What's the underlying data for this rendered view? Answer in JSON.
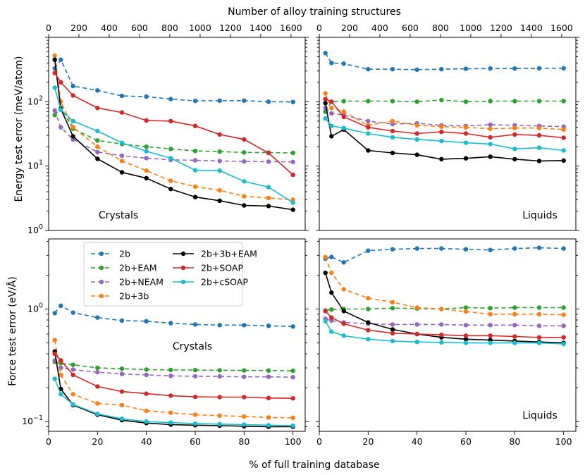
{
  "figure": {
    "top_xlabel": "Number of alloy training structures",
    "bottom_xlabel": "% of full training database",
    "top_ticks": [
      0,
      200,
      400,
      600,
      800,
      1000,
      1200,
      1400,
      1600
    ],
    "top_ticks_max_value": 1613,
    "legend": [
      "2b",
      "2b+EAM",
      "2b+NEAM",
      "2b+3b",
      "2b+3b+EAM",
      "2b+SOAP",
      "2b+cSOAP"
    ]
  },
  "chart_data": [
    {
      "type": "line",
      "panel": "energy-crystals",
      "label": "Crystals",
      "ylabel": "Energy test error (meV/atom)",
      "yscale": "log",
      "xlim": [
        0,
        105
      ],
      "ylim": [
        1,
        1000
      ],
      "yticks": [
        "10^0",
        "10^1",
        "10^2"
      ],
      "xticks": [
        0,
        20,
        40,
        60,
        80,
        100
      ],
      "x": [
        2.5,
        5,
        10,
        20,
        30,
        40,
        50,
        60,
        70,
        80,
        90,
        100
      ],
      "series": [
        {
          "name": "2b",
          "color": "#1f77b4",
          "dashed": true,
          "values": [
            330,
            450,
            175,
            150,
            123,
            120,
            110,
            103,
            104,
            104,
            100,
            99
          ]
        },
        {
          "name": "2b+EAM",
          "color": "#2ca02c",
          "dashed": true,
          "values": [
            62,
            80,
            38,
            25,
            22,
            20,
            18.5,
            17.2,
            16.8,
            16.3,
            16.2,
            16
          ]
        },
        {
          "name": "2b+NEAM",
          "color": "#9467bd",
          "dashed": true,
          "values": [
            73,
            40,
            26,
            16.5,
            14.5,
            13.3,
            12.5,
            12.3,
            12,
            11.8,
            11.7,
            11.6
          ]
        },
        {
          "name": "2b+3b",
          "color": "#ff7f0e",
          "dashed": true,
          "values": [
            520,
            100,
            40,
            20,
            12,
            8.5,
            5.9,
            4.8,
            4.2,
            3.4,
            3.2,
            3
          ]
        },
        {
          "name": "2b+3b+EAM",
          "color": "#000000",
          "dashed": false,
          "values": [
            450,
            77,
            29,
            13,
            8,
            6.5,
            4.4,
            3.3,
            2.9,
            2.45,
            2.4,
            2.1
          ]
        },
        {
          "name": "2b+SOAP",
          "color": "#d62728",
          "dashed": false,
          "values": [
            280,
            200,
            125,
            80,
            68,
            51,
            50,
            42,
            31,
            26,
            16,
            7.3
          ]
        },
        {
          "name": "2b+cSOAP",
          "color": "#17becf",
          "dashed": false,
          "values": [
            165,
            75,
            50,
            35,
            23,
            17,
            13.3,
            8.6,
            8.5,
            5.8,
            4.7,
            2.7
          ]
        }
      ]
    },
    {
      "type": "line",
      "panel": "energy-liquids",
      "label": "Liquids",
      "yscale": "log",
      "xlim": [
        0,
        105
      ],
      "ylim": [
        1,
        1000
      ],
      "x": [
        2.5,
        5,
        10,
        20,
        30,
        40,
        50,
        60,
        70,
        80,
        90,
        100
      ],
      "series": [
        {
          "name": "2b",
          "color": "#1f77b4",
          "dashed": true,
          "values": [
            570,
            400,
            390,
            320,
            320,
            315,
            320,
            325,
            328,
            328,
            330,
            330
          ]
        },
        {
          "name": "2b+EAM",
          "color": "#2ca02c",
          "dashed": true,
          "values": [
            70,
            100,
            102,
            102,
            102,
            100,
            106,
            100,
            102,
            102,
            102,
            102
          ]
        },
        {
          "name": "2b+NEAM",
          "color": "#9467bd",
          "dashed": true,
          "values": [
            80,
            66,
            62,
            50,
            45,
            46,
            43,
            42,
            44,
            43,
            42,
            41
          ]
        },
        {
          "name": "2b+3b",
          "color": "#ff7f0e",
          "dashed": true,
          "values": [
            135,
            80,
            70,
            43,
            50,
            43,
            41,
            40,
            38,
            39,
            39,
            37
          ]
        },
        {
          "name": "2b+3b+EAM",
          "color": "#000000",
          "dashed": false,
          "values": [
            95,
            29,
            37,
            17.5,
            16,
            15,
            12.8,
            13.2,
            14,
            12.8,
            12,
            12.2
          ]
        },
        {
          "name": "2b+SOAP",
          "color": "#d62728",
          "dashed": false,
          "values": [
            110,
            100,
            58,
            40,
            35,
            32,
            34,
            32,
            28,
            31,
            30,
            27.5
          ]
        },
        {
          "name": "2b+cSOAP",
          "color": "#17becf",
          "dashed": false,
          "values": [
            55,
            42,
            39,
            32,
            28,
            26,
            24.5,
            23,
            22,
            18.5,
            19.3,
            17.5
          ]
        }
      ]
    },
    {
      "type": "line",
      "panel": "force-crystals",
      "label": "Crystals",
      "ylabel": "Force test error (eV/Å)",
      "yscale": "log",
      "xlim": [
        0,
        105
      ],
      "ylim": [
        0.082,
        4.2
      ],
      "yticks": [
        "10^-1",
        "10^0"
      ],
      "xticks": [
        0,
        20,
        40,
        60,
        80,
        100
      ],
      "x": [
        2.5,
        5,
        10,
        20,
        30,
        40,
        50,
        60,
        70,
        80,
        90,
        100
      ],
      "series": [
        {
          "name": "2b",
          "color": "#1f77b4",
          "dashed": true,
          "values": [
            0.92,
            1.07,
            0.93,
            0.84,
            0.79,
            0.78,
            0.75,
            0.73,
            0.72,
            0.72,
            0.71,
            0.7
          ]
        },
        {
          "name": "2b+EAM",
          "color": "#2ca02c",
          "dashed": true,
          "values": [
            0.34,
            0.33,
            0.32,
            0.3,
            0.295,
            0.29,
            0.288,
            0.287,
            0.286,
            0.285,
            0.284,
            0.283
          ]
        },
        {
          "name": "2b+NEAM",
          "color": "#9467bd",
          "dashed": true,
          "values": [
            0.35,
            0.3,
            0.29,
            0.275,
            0.265,
            0.26,
            0.255,
            0.253,
            0.252,
            0.25,
            0.25,
            0.248
          ]
        },
        {
          "name": "2b+3b",
          "color": "#ff7f0e",
          "dashed": true,
          "values": [
            0.53,
            0.26,
            0.175,
            0.145,
            0.14,
            0.125,
            0.12,
            0.115,
            0.113,
            0.111,
            0.109,
            0.108
          ]
        },
        {
          "name": "2b+3b+EAM",
          "color": "#000000",
          "dashed": false,
          "values": [
            0.42,
            0.195,
            0.14,
            0.115,
            0.103,
            0.097,
            0.094,
            0.093,
            0.092,
            0.091,
            0.09,
            0.09
          ]
        },
        {
          "name": "2b+SOAP",
          "color": "#d62728",
          "dashed": false,
          "values": [
            0.4,
            0.35,
            0.26,
            0.205,
            0.185,
            0.177,
            0.17,
            0.166,
            0.165,
            0.165,
            0.162,
            0.161
          ]
        },
        {
          "name": "2b+cSOAP",
          "color": "#17becf",
          "dashed": false,
          "values": [
            0.24,
            0.175,
            0.142,
            0.117,
            0.106,
            0.1,
            0.098,
            0.096,
            0.095,
            0.094,
            0.093,
            0.092
          ]
        }
      ]
    },
    {
      "type": "line",
      "panel": "force-liquids",
      "label": "Liquids",
      "yscale": "log",
      "xlim": [
        0,
        105
      ],
      "ylim": [
        0.082,
        4.2
      ],
      "x": [
        2.5,
        5,
        10,
        20,
        30,
        40,
        50,
        60,
        70,
        80,
        90,
        100
      ],
      "series": [
        {
          "name": "2b",
          "color": "#1f77b4",
          "dashed": true,
          "values": [
            2.8,
            2.9,
            2.6,
            3.3,
            3.4,
            3.45,
            3.45,
            3.4,
            3.35,
            3.45,
            3.5,
            3.45
          ]
        },
        {
          "name": "2b+EAM",
          "color": "#2ca02c",
          "dashed": true,
          "values": [
            0.97,
            0.99,
            1.0,
            1.0,
            1.02,
            1.01,
            1.0,
            1.03,
            1.02,
            1.03,
            1.03,
            1.03
          ]
        },
        {
          "name": "2b+NEAM",
          "color": "#9467bd",
          "dashed": true,
          "values": [
            0.82,
            0.79,
            0.76,
            0.74,
            0.73,
            0.73,
            0.73,
            0.72,
            0.72,
            0.72,
            0.71,
            0.71
          ]
        },
        {
          "name": "2b+3b",
          "color": "#ff7f0e",
          "dashed": true,
          "values": [
            2.9,
            2.1,
            1.5,
            1.25,
            1.15,
            1.03,
            1.0,
            0.95,
            0.9,
            0.9,
            0.9,
            0.89
          ]
        },
        {
          "name": "2b+3b+EAM",
          "color": "#000000",
          "dashed": false,
          "values": [
            2.1,
            1.4,
            0.96,
            0.76,
            0.66,
            0.6,
            0.56,
            0.54,
            0.53,
            0.52,
            0.51,
            0.5
          ]
        },
        {
          "name": "2b+SOAP",
          "color": "#d62728",
          "dashed": false,
          "values": [
            0.96,
            0.84,
            0.74,
            0.65,
            0.61,
            0.6,
            0.59,
            0.58,
            0.58,
            0.57,
            0.56,
            0.56
          ]
        },
        {
          "name": "2b+cSOAP",
          "color": "#17becf",
          "dashed": false,
          "values": [
            0.78,
            0.63,
            0.58,
            0.54,
            0.52,
            0.51,
            0.505,
            0.5,
            0.5,
            0.5,
            0.5,
            0.49
          ]
        }
      ]
    }
  ]
}
